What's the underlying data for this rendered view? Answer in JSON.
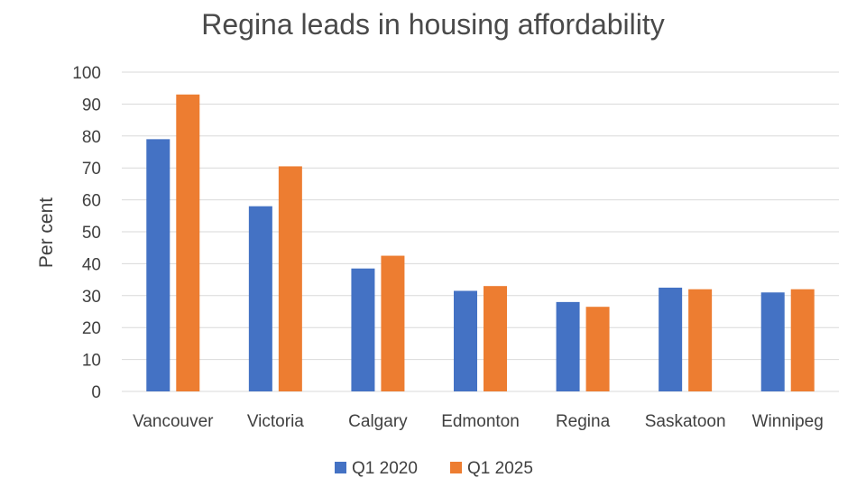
{
  "chart_data": {
    "type": "bar",
    "title": "Regina leads in housing affordability",
    "xlabel": "",
    "ylabel": "Per cent",
    "ylim": [
      0,
      100
    ],
    "y_ticks": [
      0,
      10,
      20,
      30,
      40,
      50,
      60,
      70,
      80,
      90,
      100
    ],
    "categories": [
      "Vancouver",
      "Victoria",
      "Calgary",
      "Edmonton",
      "Regina",
      "Saskatoon",
      "Winnipeg"
    ],
    "series": [
      {
        "name": "Q1 2020",
        "color": "#4472c4",
        "values": [
          79,
          58,
          38.5,
          31.5,
          28,
          32.5,
          31
        ]
      },
      {
        "name": "Q1 2025",
        "color": "#ed7d31",
        "values": [
          93,
          70.5,
          42.5,
          33,
          26.5,
          32,
          32
        ]
      }
    ],
    "grid": true,
    "legend_position": "bottom"
  }
}
